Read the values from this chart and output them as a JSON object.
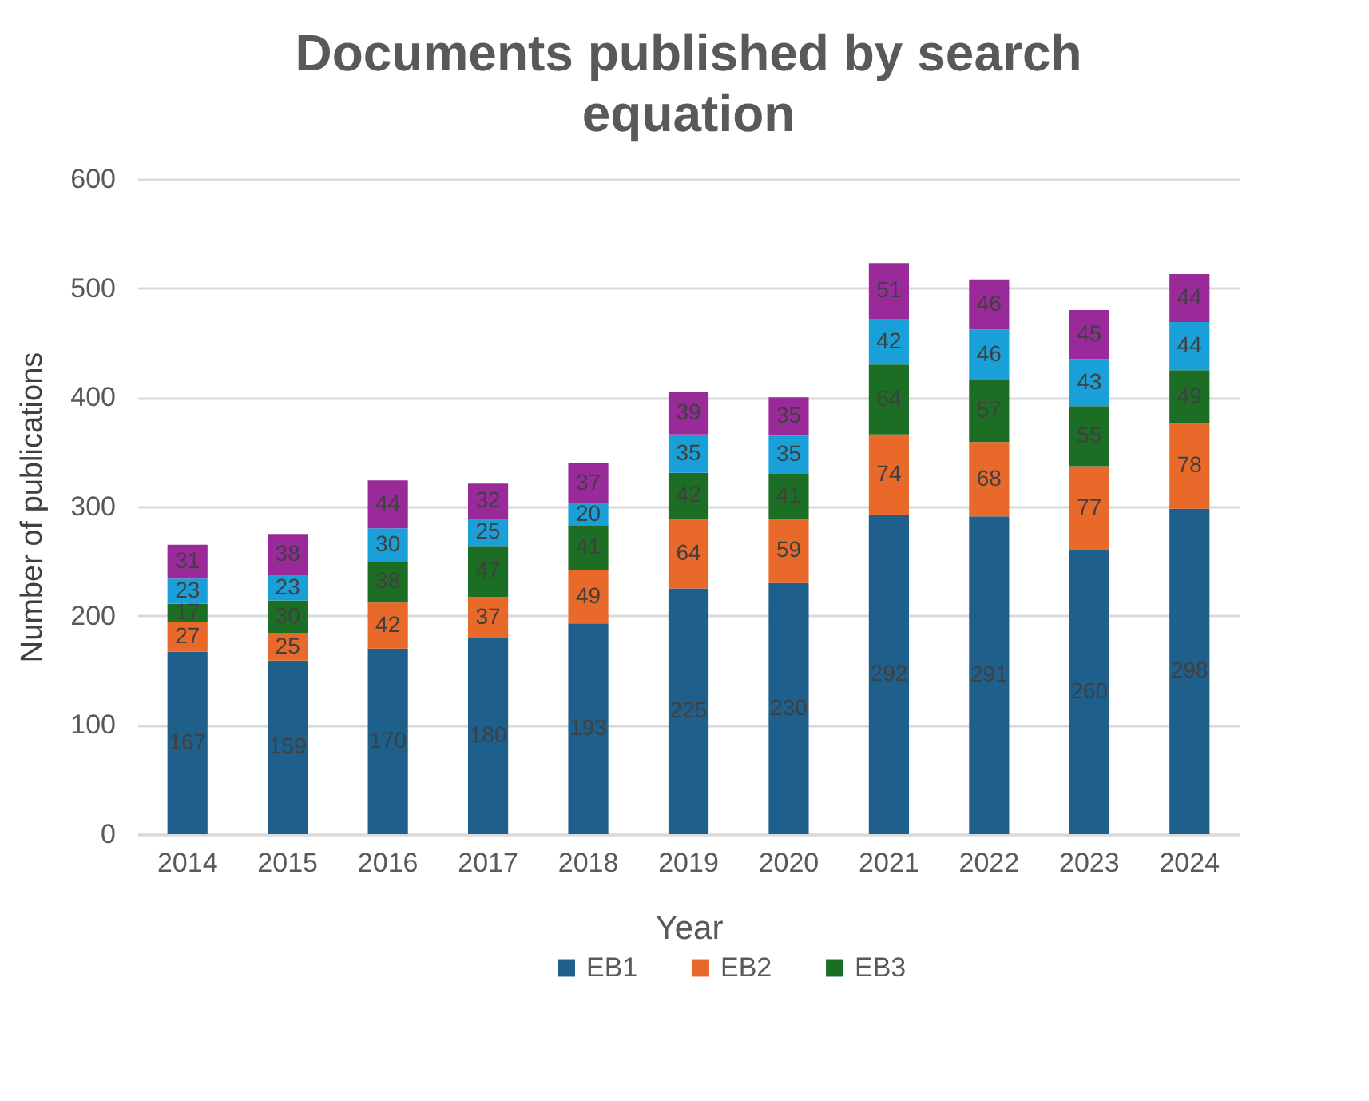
{
  "chart_data": {
    "type": "bar",
    "title": "Documents published by search equation",
    "xlabel": "Year",
    "ylabel": "Number of publications",
    "categories": [
      "2014",
      "2015",
      "2016",
      "2017",
      "2018",
      "2019",
      "2020",
      "2021",
      "2022",
      "2023",
      "2024"
    ],
    "stacked": true,
    "data_labels": true,
    "grid": "y",
    "legend": "bottom",
    "ylim": [
      0,
      600
    ],
    "yticks": [
      0,
      100,
      200,
      300,
      400,
      500,
      600
    ],
    "series": [
      {
        "name": "EB1",
        "color": "#1f5f8b",
        "values": [
          167,
          159,
          170,
          180,
          193,
          225,
          230,
          292,
          291,
          260,
          298
        ]
      },
      {
        "name": "EB2",
        "color": "#e8692a",
        "values": [
          27,
          25,
          42,
          37,
          49,
          64,
          59,
          74,
          68,
          77,
          78
        ]
      },
      {
        "name": "EB3",
        "color": "#1b6e24",
        "values": [
          17,
          30,
          38,
          47,
          41,
          42,
          41,
          64,
          57,
          55,
          49
        ]
      },
      {
        "color": "#1aa0d8",
        "values": [
          23,
          23,
          30,
          25,
          20,
          35,
          35,
          42,
          46,
          43,
          44
        ]
      },
      {
        "color": "#9a2a9a",
        "values": [
          31,
          38,
          44,
          32,
          37,
          39,
          35,
          51,
          46,
          45,
          44
        ]
      }
    ]
  }
}
